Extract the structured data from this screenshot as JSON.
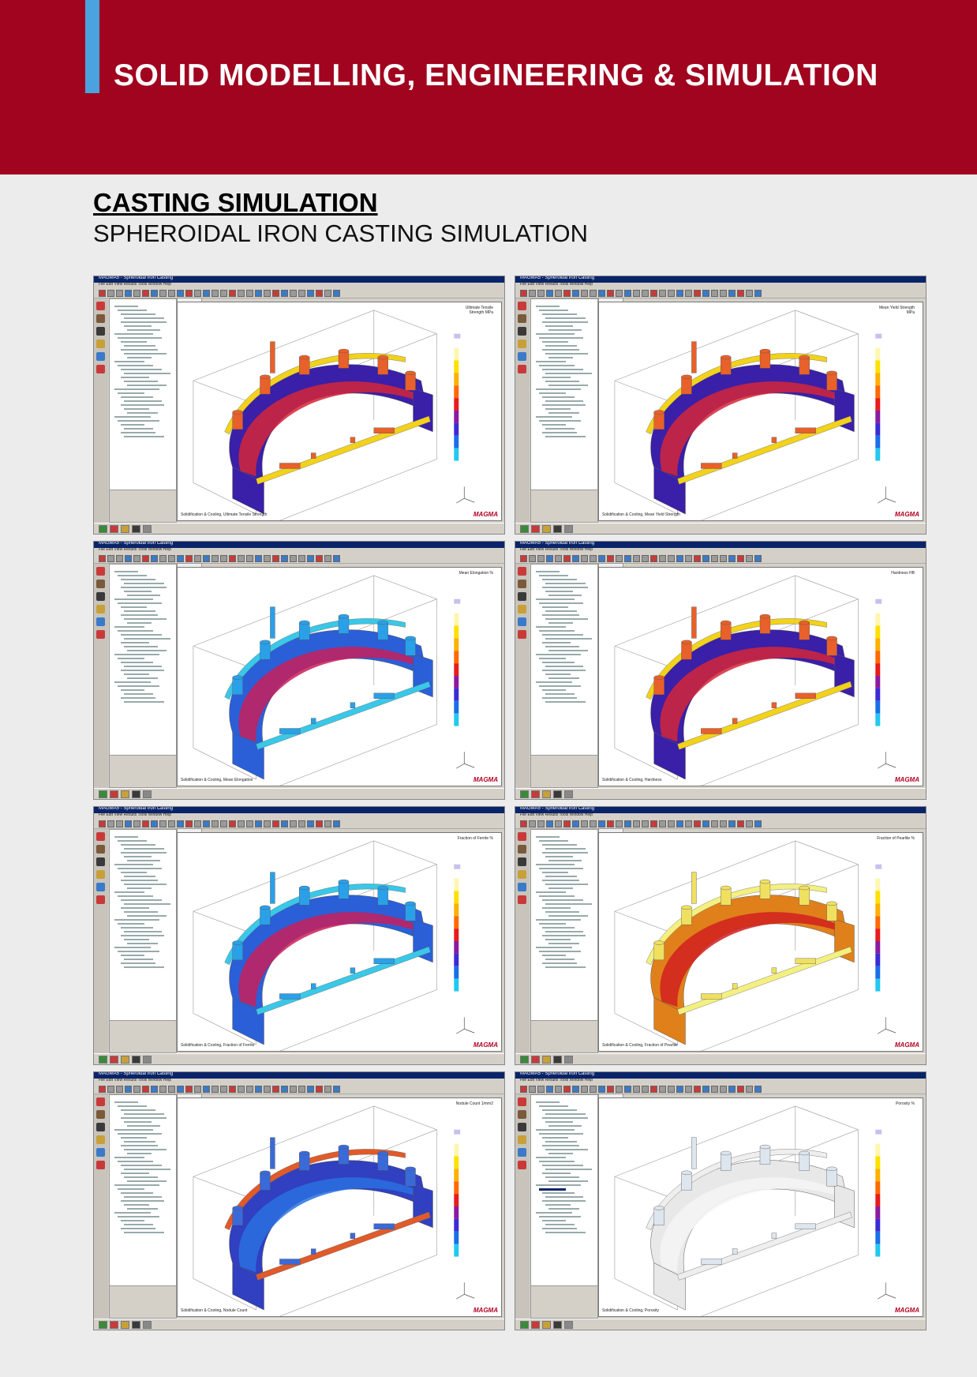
{
  "banner": {
    "title": "SOLID MODELLING, ENGINEERING & SIMULATION"
  },
  "heading": {
    "main": "CASTING SIMULATION",
    "sub": "SPHEROIDAL IRON CASTING SIMULATION"
  },
  "colors": {
    "banner": "#a0041e",
    "accent": "#4aa3df",
    "background": "#ececec"
  },
  "screenshots": [
    {
      "legend": "Ultimate Tensile Strength MPa",
      "caption": "Solidification & Cooling, Ultimate Tensile Strength",
      "scheme": "hot"
    },
    {
      "legend": "Mean Yield Strength MPa",
      "caption": "Solidification & Cooling, Mean Yield Strength",
      "scheme": "hot"
    },
    {
      "legend": "Mean Elongation %",
      "caption": "Solidification & Cooling, Mean Elongation",
      "scheme": "cool"
    },
    {
      "legend": "Hardness HB",
      "caption": "Solidification & Cooling, Hardness",
      "scheme": "hot"
    },
    {
      "legend": "Fraction of Ferrite %",
      "caption": "Solidification & Cooling, Fraction of Ferrite",
      "scheme": "cool"
    },
    {
      "legend": "Fraction of Pearlite %",
      "caption": "Solidification & Cooling, Fraction of Pearlite",
      "scheme": "yellow"
    },
    {
      "legend": "Nodule Count 1/mm2",
      "caption": "Solidification & Cooling, Nodule Count",
      "scheme": "mixed"
    },
    {
      "legend": "Porosity %",
      "caption": "Solidification & Cooling, Porosity",
      "scheme": "white"
    }
  ],
  "software": {
    "title": "MAGMA5 - Spheroidal Iron Casting",
    "menu": "File  Edit  View  Results  Tools  Window  Help",
    "brand": "MAGMA"
  }
}
